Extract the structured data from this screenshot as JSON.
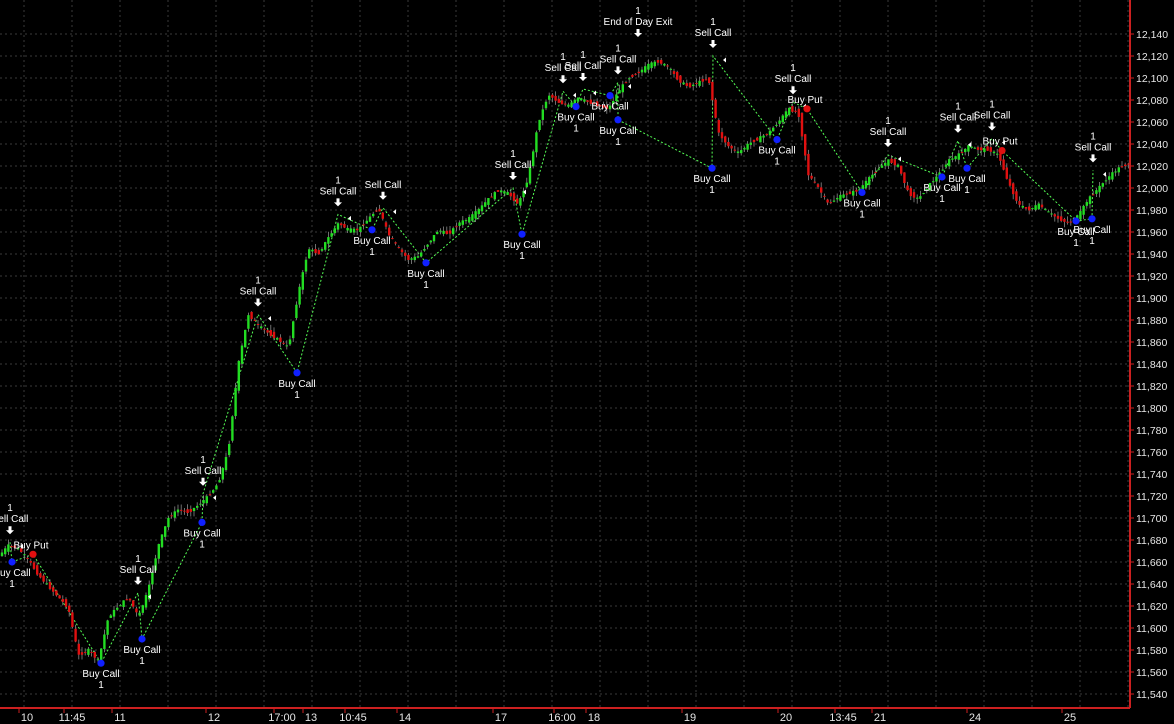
{
  "chart_data": {
    "type": "candlestick",
    "title": "",
    "xlabel": "",
    "ylabel": "",
    "ylim": [
      11530,
      12160
    ],
    "y_tick_labels": [
      "11,540",
      "11,560",
      "11,580",
      "11,600",
      "11,620",
      "11,640",
      "11,660",
      "11,680",
      "11,700",
      "11,720",
      "11,740",
      "11,760",
      "11,780",
      "11,800",
      "11,820",
      "11,840",
      "11,860",
      "11,880",
      "11,900",
      "11,920",
      "11,940",
      "11,960",
      "11,980",
      "12,000",
      "12,020",
      "12,040",
      "12,060",
      "12,080",
      "12,100",
      "12,120",
      "12,140"
    ],
    "y_tick_values": [
      11540,
      11560,
      11580,
      11600,
      11620,
      11640,
      11660,
      11680,
      11700,
      11720,
      11740,
      11760,
      11780,
      11800,
      11820,
      11840,
      11860,
      11880,
      11900,
      11920,
      11940,
      11960,
      11980,
      12000,
      12020,
      12040,
      12060,
      12080,
      12100,
      12120,
      12140
    ],
    "x_range": [
      0,
      1130
    ],
    "x_ticks": [
      {
        "label": "10",
        "x": 27
      },
      {
        "label": "11:45",
        "x": 72
      },
      {
        "label": "11",
        "x": 120
      },
      {
        "label": "12",
        "x": 214
      },
      {
        "label": "17:00",
        "x": 282
      },
      {
        "label": "13",
        "x": 311
      },
      {
        "label": "10:45",
        "x": 353
      },
      {
        "label": "14",
        "x": 405
      },
      {
        "label": "17",
        "x": 501
      },
      {
        "label": "16:00",
        "x": 562
      },
      {
        "label": "18",
        "x": 594
      },
      {
        "label": "19",
        "x": 690
      },
      {
        "label": "20",
        "x": 786
      },
      {
        "label": "13:45",
        "x": 843
      },
      {
        "label": "21",
        "x": 880
      },
      {
        "label": "24",
        "x": 975
      },
      {
        "label": "25",
        "x": 1070
      }
    ],
    "grid": true,
    "price_path": [
      [
        0,
        11665
      ],
      [
        10,
        11675
      ],
      [
        20,
        11672
      ],
      [
        30,
        11662
      ],
      [
        40,
        11648
      ],
      [
        50,
        11638
      ],
      [
        60,
        11628
      ],
      [
        70,
        11618
      ],
      [
        80,
        11575
      ],
      [
        90,
        11580
      ],
      [
        100,
        11570
      ],
      [
        110,
        11610
      ],
      [
        120,
        11620
      ],
      [
        130,
        11628
      ],
      [
        140,
        11610
      ],
      [
        150,
        11635
      ],
      [
        160,
        11675
      ],
      [
        170,
        11700
      ],
      [
        180,
        11708
      ],
      [
        190,
        11705
      ],
      [
        200,
        11712
      ],
      [
        210,
        11720
      ],
      [
        220,
        11732
      ],
      [
        230,
        11762
      ],
      [
        240,
        11840
      ],
      [
        250,
        11885
      ],
      [
        260,
        11875
      ],
      [
        270,
        11868
      ],
      [
        280,
        11862
      ],
      [
        290,
        11855
      ],
      [
        300,
        11905
      ],
      [
        310,
        11945
      ],
      [
        320,
        11940
      ],
      [
        330,
        11955
      ],
      [
        340,
        11968
      ],
      [
        350,
        11962
      ],
      [
        360,
        11962
      ],
      [
        370,
        11972
      ],
      [
        380,
        11982
      ],
      [
        390,
        11958
      ],
      [
        400,
        11945
      ],
      [
        410,
        11935
      ],
      [
        420,
        11938
      ],
      [
        430,
        11950
      ],
      [
        440,
        11962
      ],
      [
        450,
        11958
      ],
      [
        460,
        11968
      ],
      [
        470,
        11972
      ],
      [
        480,
        11980
      ],
      [
        490,
        11990
      ],
      [
        500,
        11998
      ],
      [
        510,
        11995
      ],
      [
        520,
        11985
      ],
      [
        530,
        12010
      ],
      [
        540,
        12060
      ],
      [
        550,
        12085
      ],
      [
        560,
        12078
      ],
      [
        570,
        12075
      ],
      [
        580,
        12082
      ],
      [
        590,
        12078
      ],
      [
        600,
        12075
      ],
      [
        610,
        12072
      ],
      [
        620,
        12088
      ],
      [
        630,
        12100
      ],
      [
        640,
        12105
      ],
      [
        650,
        12112
      ],
      [
        660,
        12115
      ],
      [
        670,
        12110
      ],
      [
        680,
        12098
      ],
      [
        690,
        12092
      ],
      [
        700,
        12096
      ],
      [
        710,
        12100
      ],
      [
        720,
        12050
      ],
      [
        730,
        12038
      ],
      [
        740,
        12032
      ],
      [
        750,
        12040
      ],
      [
        760,
        12045
      ],
      [
        770,
        12050
      ],
      [
        780,
        12060
      ],
      [
        790,
        12072
      ],
      [
        800,
        12068
      ],
      [
        810,
        12012
      ],
      [
        820,
        12000
      ],
      [
        830,
        11985
      ],
      [
        840,
        11992
      ],
      [
        850,
        11995
      ],
      [
        860,
        11998
      ],
      [
        870,
        12008
      ],
      [
        880,
        12018
      ],
      [
        890,
        12025
      ],
      [
        900,
        12020
      ],
      [
        910,
        11995
      ],
      [
        920,
        11990
      ],
      [
        930,
        12002
      ],
      [
        940,
        12012
      ],
      [
        950,
        12025
      ],
      [
        960,
        12030
      ],
      [
        970,
        12038
      ],
      [
        980,
        12035
      ],
      [
        990,
        12035
      ],
      [
        1000,
        12030
      ],
      [
        1010,
        12005
      ],
      [
        1020,
        11985
      ],
      [
        1030,
        11980
      ],
      [
        1040,
        11985
      ],
      [
        1050,
        11978
      ],
      [
        1060,
        11972
      ],
      [
        1070,
        11968
      ],
      [
        1080,
        11975
      ],
      [
        1090,
        11990
      ],
      [
        1100,
        12000
      ],
      [
        1110,
        12010
      ],
      [
        1120,
        12018
      ],
      [
        1130,
        12022
      ]
    ],
    "signals": [
      {
        "kind": "sell",
        "x": 10,
        "price": 11678,
        "text": "Sell Call",
        "qty": "1"
      },
      {
        "kind": "buy",
        "x": 12,
        "price": 11660,
        "text": "Buy Call",
        "qty": "1"
      },
      {
        "kind": "put",
        "x": 33,
        "price": 11667,
        "text": "Buy Put",
        "qty": ""
      },
      {
        "kind": "buy",
        "x": 101,
        "price": 11568,
        "text": "Buy Call",
        "qty": "1"
      },
      {
        "kind": "sell",
        "x": 138,
        "price": 11632,
        "text": "Sell Call",
        "qty": "1"
      },
      {
        "kind": "buy",
        "x": 142,
        "price": 11590,
        "text": "Buy Call",
        "qty": "1"
      },
      {
        "kind": "sell",
        "x": 203,
        "price": 11722,
        "text": "Sell Call",
        "qty": "1"
      },
      {
        "kind": "buy",
        "x": 202,
        "price": 11696,
        "text": "Buy Call",
        "qty": "1"
      },
      {
        "kind": "sell",
        "x": 258,
        "price": 11885,
        "text": "Sell Call",
        "qty": "1"
      },
      {
        "kind": "buy",
        "x": 297,
        "price": 11832,
        "text": "Buy Call",
        "qty": "1"
      },
      {
        "kind": "sell",
        "x": 338,
        "price": 11976,
        "text": "Sell Call",
        "qty": "1"
      },
      {
        "kind": "sell",
        "x": 383,
        "price": 11982,
        "text": "Sell Call",
        "qty": ""
      },
      {
        "kind": "buy",
        "x": 372,
        "price": 11962,
        "text": "Buy Call",
        "qty": "1"
      },
      {
        "kind": "buy",
        "x": 426,
        "price": 11932,
        "text": "Buy Call",
        "qty": "1"
      },
      {
        "kind": "sell",
        "x": 513,
        "price": 12000,
        "text": "Sell Call",
        "qty": "1"
      },
      {
        "kind": "buy",
        "x": 522,
        "price": 11958,
        "text": "Buy Call",
        "qty": "1"
      },
      {
        "kind": "sell",
        "x": 563,
        "price": 12088,
        "text": "Sell Call",
        "qty": "1"
      },
      {
        "kind": "buy",
        "x": 576,
        "price": 12074,
        "text": "Buy Call",
        "qty": "1"
      },
      {
        "kind": "sell",
        "x": 583,
        "price": 12090,
        "text": "Sell Call",
        "qty": "1"
      },
      {
        "kind": "sell",
        "x": 618,
        "price": 12096,
        "text": "Sell Call",
        "qty": "1"
      },
      {
        "kind": "buy",
        "x": 610,
        "price": 12084,
        "text": "Buy Call",
        "qty": ""
      },
      {
        "kind": "buy",
        "x": 618,
        "price": 12062,
        "text": "Buy Call",
        "qty": "1"
      },
      {
        "kind": "exit",
        "x": 638,
        "price": 12130,
        "text": "End of Day Exit",
        "qty": "1"
      },
      {
        "kind": "sell",
        "x": 713,
        "price": 12120,
        "text": "Sell Call",
        "qty": "1"
      },
      {
        "kind": "buy",
        "x": 712,
        "price": 12018,
        "text": "Buy Call",
        "qty": "1"
      },
      {
        "kind": "sell",
        "x": 793,
        "price": 12078,
        "text": "Sell Call",
        "qty": "1"
      },
      {
        "kind": "put",
        "x": 807,
        "price": 12072,
        "text": "Buy Put",
        "qty": ""
      },
      {
        "kind": "buy",
        "x": 777,
        "price": 12044,
        "text": "Buy Call",
        "qty": "1"
      },
      {
        "kind": "buy",
        "x": 862,
        "price": 11996,
        "text": "Buy Call",
        "qty": "1"
      },
      {
        "kind": "sell",
        "x": 888,
        "price": 12030,
        "text": "Sell Call",
        "qty": "1"
      },
      {
        "kind": "buy",
        "x": 942,
        "price": 12010,
        "text": "Buy Call",
        "qty": "1"
      },
      {
        "kind": "sell",
        "x": 958,
        "price": 12043,
        "text": "Sell Call",
        "qty": "1"
      },
      {
        "kind": "buy",
        "x": 967,
        "price": 12018,
        "text": "Buy Call",
        "qty": "1"
      },
      {
        "kind": "sell",
        "x": 992,
        "price": 12045,
        "text": "Sell Call",
        "qty": "1"
      },
      {
        "kind": "put",
        "x": 1002,
        "price": 12034,
        "text": "Buy Put",
        "qty": ""
      },
      {
        "kind": "buy",
        "x": 1076,
        "price": 11970,
        "text": "Buy Call",
        "qty": "1"
      },
      {
        "kind": "buy",
        "x": 1092,
        "price": 11972,
        "text": "Buy Call",
        "qty": "1"
      },
      {
        "kind": "sell",
        "x": 1093,
        "price": 12016,
        "text": "Sell Call",
        "qty": "1"
      }
    ],
    "colors": {
      "background": "#000000",
      "grid": "#3a3a3a",
      "up_candle": "#22dd22",
      "down_candle": "#e01010",
      "axis_frame": "#cc2020",
      "trail_line": "#55ff55",
      "buy_marker": "#1020ff",
      "put_marker": "#e01010",
      "sell_arrow": "#ffffff",
      "label_text": "#ffffff"
    }
  }
}
